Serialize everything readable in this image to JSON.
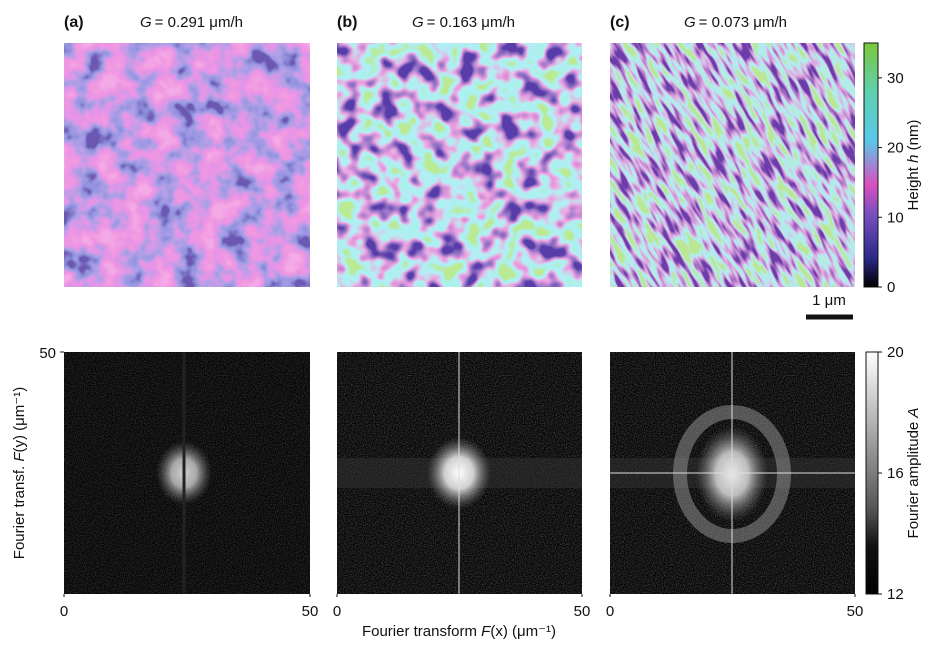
{
  "panels": [
    {
      "label": "(a)",
      "param": "G",
      "value": "= 0.291 μm/h"
    },
    {
      "label": "(b)",
      "param": "G",
      "value": "= 0.163 μm/h"
    },
    {
      "label": "(c)",
      "param": "G",
      "value": "= 0.073 μm/h"
    }
  ],
  "height_colorbar": {
    "label": "Height ",
    "symbol": "h",
    "unit": " (nm)",
    "lim": [
      0,
      35
    ],
    "ticks": [
      0,
      10,
      20,
      30
    ]
  },
  "scale_bar": "1 μm",
  "fourier": {
    "x_label": "Fourier transform ",
    "x_symbol": "F",
    "x_rest": "(x) (μm⁻¹)",
    "y_label": "Fourier transf. ",
    "y_symbol": "F",
    "y_rest": "(y) (μm⁻¹)",
    "xlim": [
      0,
      50
    ],
    "xticks": [
      0,
      50
    ],
    "ylim": [
      0,
      50
    ],
    "yticks": [
      50
    ]
  },
  "amplitude_colorbar": {
    "label": "Fourier amplitude ",
    "symbol": "A",
    "lim": [
      12,
      20
    ],
    "ticks": [
      12,
      16,
      20
    ]
  }
}
